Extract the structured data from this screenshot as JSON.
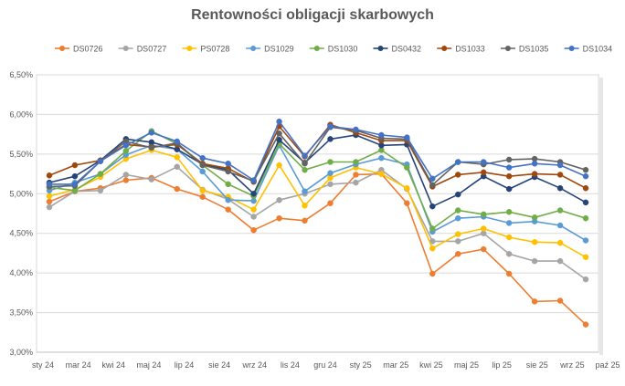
{
  "chart_data": {
    "type": "line",
    "title": "Rentowności obligacji skarbowych",
    "xlabel": "",
    "ylabel": "",
    "ylim": [
      3.0,
      6.5
    ],
    "y_ticks": [
      3.0,
      3.5,
      4.0,
      4.5,
      5.0,
      5.5,
      6.0,
      6.5
    ],
    "y_tick_labels": [
      "3,00%",
      "3,50%",
      "4,00%",
      "4,50%",
      "5,00%",
      "5,50%",
      "6,00%",
      "6,50%"
    ],
    "x_tick_labels": [
      "sty 24",
      "mar 24",
      "kwi 24",
      "maj 24",
      "lip 24",
      "sie 24",
      "wrz 24",
      "lis 24",
      "gru 24",
      "sty 25",
      "mar 25",
      "kwi 25",
      "maj 25",
      "lip 25",
      "sie 25",
      "wrz 25",
      "paź 25"
    ],
    "grid": "horizontal",
    "legend_position": "top",
    "series": [
      {
        "name": "DS0726",
        "color": "#ED7D31",
        "values": [
          4.9,
          5.03,
          5.07,
          5.17,
          5.2,
          5.06,
          4.96,
          4.8,
          4.54,
          4.69,
          4.66,
          4.88,
          5.24,
          5.25,
          4.88,
          3.99,
          4.24,
          4.3,
          3.99,
          3.64,
          3.65,
          3.35
        ]
      },
      {
        "name": "DS0727",
        "color": "#A5A5A5",
        "values": [
          4.83,
          5.03,
          5.04,
          5.24,
          5.18,
          5.34,
          5.05,
          4.93,
          4.71,
          4.92,
          5.0,
          5.12,
          5.14,
          5.3,
          5.06,
          4.4,
          4.4,
          4.5,
          4.24,
          4.15,
          4.15,
          3.92
        ]
      },
      {
        "name": "PS0728",
        "color": "#FFC000",
        "values": [
          4.97,
          5.05,
          5.21,
          5.44,
          5.55,
          5.46,
          5.04,
          4.96,
          4.8,
          5.36,
          4.85,
          5.2,
          5.33,
          5.25,
          5.07,
          4.31,
          4.49,
          4.56,
          4.45,
          4.39,
          4.38,
          4.2
        ]
      },
      {
        "name": "DS1029",
        "color": "#5B9BD5",
        "values": [
          5.04,
          5.14,
          5.25,
          5.49,
          5.61,
          5.56,
          5.28,
          4.92,
          4.91,
          5.61,
          5.03,
          5.26,
          5.37,
          5.45,
          5.37,
          4.52,
          4.69,
          4.71,
          4.63,
          4.65,
          4.6,
          4.41
        ]
      },
      {
        "name": "DS1030",
        "color": "#70AD47",
        "values": [
          5.08,
          5.04,
          5.25,
          5.54,
          5.79,
          5.63,
          5.36,
          5.12,
          4.97,
          5.63,
          5.3,
          5.4,
          5.4,
          5.55,
          5.33,
          4.56,
          4.79,
          4.74,
          4.77,
          4.7,
          4.79,
          4.69
        ]
      },
      {
        "name": "DS0432",
        "color": "#264478",
        "values": [
          5.14,
          5.22,
          5.42,
          5.69,
          5.65,
          5.56,
          5.37,
          5.3,
          5.0,
          5.68,
          5.39,
          5.69,
          5.74,
          5.61,
          5.62,
          4.84,
          4.99,
          5.22,
          5.06,
          5.21,
          5.07,
          4.89
        ]
      },
      {
        "name": "DS1033",
        "color": "#9E480E",
        "values": [
          5.23,
          5.36,
          5.42,
          5.62,
          5.59,
          5.62,
          5.38,
          5.32,
          5.15,
          5.85,
          5.47,
          5.87,
          5.77,
          5.67,
          5.67,
          5.09,
          5.24,
          5.27,
          5.22,
          5.25,
          5.24,
          5.07
        ]
      },
      {
        "name": "DS1035",
        "color": "#636363",
        "values": [
          5.09,
          5.1,
          5.41,
          5.66,
          5.58,
          5.64,
          5.36,
          5.28,
          5.16,
          5.76,
          5.38,
          5.84,
          5.8,
          5.7,
          5.69,
          5.11,
          5.4,
          5.37,
          5.43,
          5.44,
          5.4,
          5.3
        ]
      },
      {
        "name": "DS1034",
        "color": "#4472C4",
        "values": [
          5.12,
          5.12,
          5.41,
          5.61,
          5.77,
          5.66,
          5.45,
          5.38,
          5.17,
          5.91,
          5.48,
          5.85,
          5.81,
          5.74,
          5.71,
          5.19,
          5.4,
          5.4,
          5.33,
          5.38,
          5.36,
          5.22
        ]
      }
    ]
  }
}
